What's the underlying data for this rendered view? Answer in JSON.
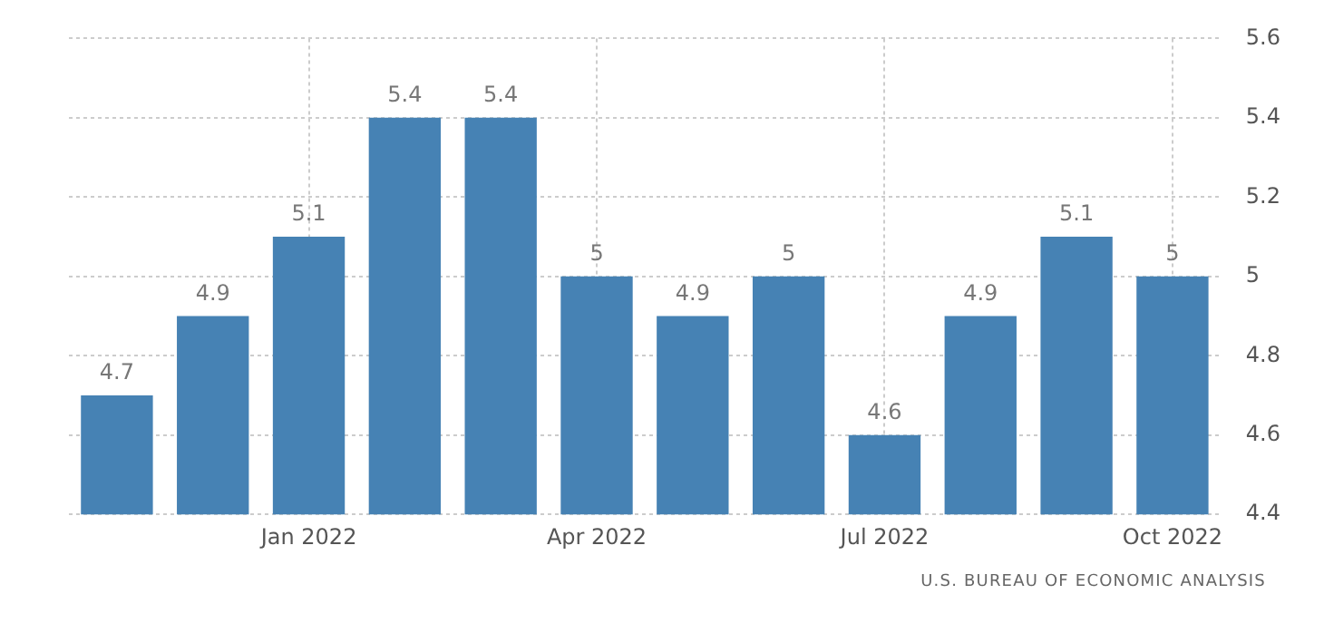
{
  "chart_data": {
    "type": "bar",
    "categories": [
      null,
      null,
      "Jan 2022",
      null,
      null,
      "Apr 2022",
      null,
      null,
      "Jul 2022",
      null,
      null,
      "Oct 2022"
    ],
    "values": [
      4.7,
      4.9,
      5.1,
      5.4,
      5.4,
      5,
      4.9,
      5,
      4.6,
      4.9,
      5.1,
      5
    ],
    "color": "#4682b4",
    "ylim": [
      4.4,
      5.6
    ],
    "yticks": [
      4.4,
      4.6,
      4.8,
      5,
      5.2,
      5.4,
      5.6
    ],
    "grid": true,
    "legend": false,
    "data_labels": true,
    "annotations": [
      "U.S. BUREAU OF ECONOMIC ANALYSIS"
    ]
  }
}
